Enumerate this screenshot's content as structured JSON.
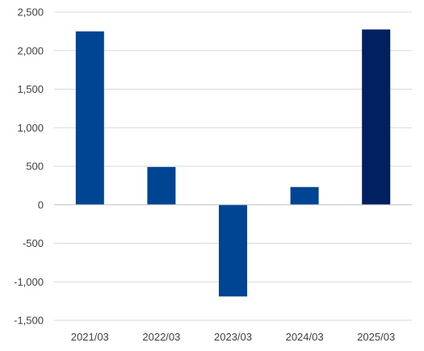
{
  "chart_data": {
    "type": "bar",
    "categories": [
      "2021/03",
      "2022/03",
      "2023/03",
      "2024/03",
      "2025/03"
    ],
    "values": [
      2250,
      490,
      -1190,
      230,
      2275
    ],
    "ylim": [
      -1500,
      2500
    ],
    "yticks": [
      2500,
      2000,
      1500,
      1000,
      500,
      0,
      -500,
      -1000,
      -1500
    ],
    "ytick_labels": [
      "2,500",
      "2,000",
      "1,500",
      "1,000",
      "500",
      "0",
      "-500",
      "-1,000",
      "-1,500"
    ],
    "grid": true,
    "legend": "none",
    "colors": {
      "bar": "#004494",
      "highlight_bar": "#002060",
      "highlight_index": 4,
      "grid": "#d9d9d9",
      "text": "#404040"
    }
  }
}
